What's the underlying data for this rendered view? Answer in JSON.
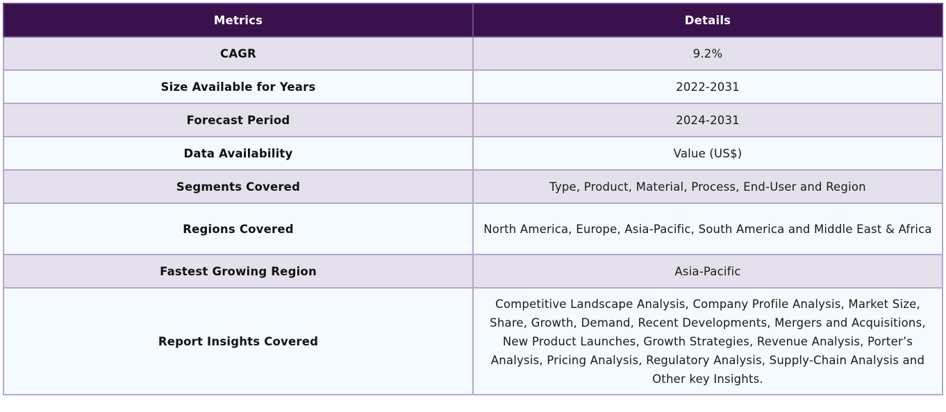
{
  "header": {
    "col1": "Metrics",
    "col2": "Details"
  },
  "rows": [
    {
      "metric": "CAGR",
      "details": "9.2%"
    },
    {
      "metric": "Size Available for Years",
      "details": "2022-2031"
    },
    {
      "metric": "Forecast Period",
      "details": "2024-2031"
    },
    {
      "metric": "Data Availability",
      "details": "Value (US$)"
    },
    {
      "metric": "Segments Covered",
      "details": "Type, Product, Material, Process, End-User and Region"
    },
    {
      "metric": "Regions Covered",
      "details": "North America, Europe, Asia-Pacific, South America and Middle East & Africa"
    },
    {
      "metric": "Fastest Growing Region",
      "details": "Asia-Pacific"
    },
    {
      "metric": "Report Insights Covered",
      "details": "Competitive Landscape Analysis, Company Profile Analysis, Market Size, Share, Growth, Demand, Recent Developments, Mergers and Acquisitions, New Product Launches, Growth Strategies, Revenue Analysis, Porter’s Analysis, Pricing Analysis, Regulatory Analysis, Supply-Chain Analysis and Other key Insights."
    }
  ],
  "colors": {
    "header_bg": "#38114d",
    "row_alt_bg": "#e4e0ec",
    "row_bg": "#f4fafd",
    "border": "#b3a7cc"
  }
}
